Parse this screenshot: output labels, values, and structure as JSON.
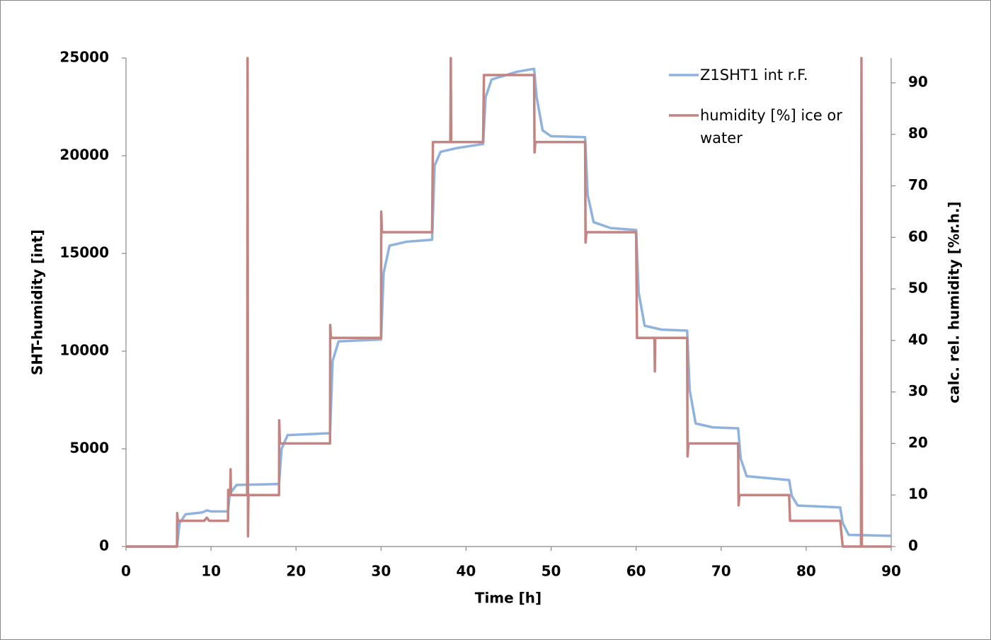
{
  "chart_data": {
    "type": "line",
    "x_label": "Time  [h]",
    "y_label": "SHT-humidity [int]",
    "y2_label": "calc. rel. humidity [%r.h.]",
    "xlim": [
      0,
      90
    ],
    "xticks": [
      0,
      10,
      20,
      30,
      40,
      50,
      60,
      70,
      80,
      90
    ],
    "ylim": [
      0,
      25000
    ],
    "yticks": [
      0,
      5000,
      10000,
      15000,
      20000,
      25000
    ],
    "y2lim": [
      0,
      94.8
    ],
    "y2ticks": [
      0,
      10,
      20,
      30,
      40,
      50,
      60,
      70,
      80,
      90
    ],
    "grid": false,
    "legend": "upper right",
    "series": [
      {
        "name": "Z1SHT1 int r.F.",
        "color": "#8fb2de",
        "axis": "y",
        "x": [
          0,
          6,
          6.3,
          7,
          9,
          9.5,
          10,
          12,
          12.2,
          13,
          18,
          18.3,
          19,
          24,
          24.3,
          25,
          30,
          30.3,
          31,
          33,
          36,
          36.3,
          37,
          39,
          42,
          42.3,
          43,
          46,
          48,
          48.3,
          49,
          50,
          54,
          54.3,
          55,
          57,
          60,
          60.3,
          61,
          63,
          66,
          66.3,
          67,
          69,
          72,
          72.3,
          73,
          78,
          78.3,
          79,
          84,
          84.3,
          85,
          90
        ],
        "values": [
          0,
          0,
          1200,
          1650,
          1750,
          1850,
          1800,
          1800,
          2700,
          3150,
          3200,
          5000,
          5700,
          5800,
          9500,
          10500,
          10600,
          14000,
          15400,
          15600,
          15700,
          19500,
          20200,
          20400,
          20600,
          23000,
          23900,
          24300,
          24450,
          23000,
          21300,
          21000,
          20950,
          18000,
          16600,
          16300,
          16200,
          13000,
          11300,
          11100,
          11050,
          8000,
          6300,
          6100,
          6050,
          4500,
          3600,
          3400,
          2600,
          2100,
          2000,
          1200,
          600,
          550
        ]
      },
      {
        "name": "humidity [%] ice or water",
        "color": "#c48482",
        "axis": "y2",
        "x": [
          0,
          6,
          6.02,
          6.1,
          9.2,
          9.5,
          9.8,
          12,
          12.02,
          12.1,
          12.25,
          12.3,
          12.35,
          14.25,
          14.3,
          14.35,
          14.4,
          18,
          18.02,
          18.1,
          24,
          24.02,
          24.1,
          30,
          30.02,
          30.1,
          36,
          36.1,
          38.15,
          38.2,
          38.25,
          42,
          42.1,
          48,
          48.05,
          48.15,
          54,
          54.05,
          54.15,
          60,
          60.1,
          62.15,
          62.2,
          62.25,
          66,
          66.05,
          66.15,
          72,
          72.05,
          72.15,
          78,
          78.1,
          84,
          84.3,
          86.45,
          86.5,
          86.55,
          90
        ],
        "values": [
          0,
          0,
          6.5,
          5,
          5,
          5.6,
          5,
          5,
          11,
          10,
          10,
          15,
          10,
          10,
          94.8,
          2,
          10,
          10,
          24.5,
          20,
          20,
          43,
          40.5,
          40.5,
          65,
          61,
          61,
          78.5,
          78.5,
          94.8,
          78.5,
          78.5,
          91.5,
          91.5,
          76.5,
          78.5,
          78.5,
          59,
          61,
          61,
          40.5,
          40.5,
          34,
          40.5,
          40.5,
          17.5,
          20,
          20,
          8,
          10,
          10,
          5,
          5,
          0,
          0,
          94.8,
          0,
          0
        ]
      }
    ]
  }
}
